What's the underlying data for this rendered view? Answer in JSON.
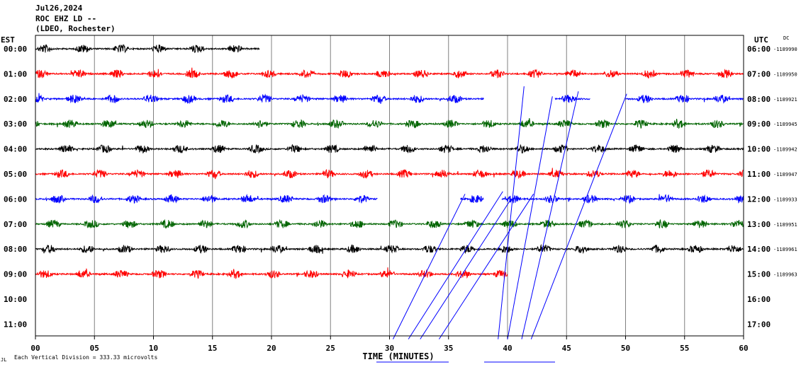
{
  "header": {
    "date": "Jul26,2024",
    "station": "ROC EHZ LD --",
    "network": "(LDEO, Rochester)"
  },
  "left_zone": "EST",
  "right_zone": "UTC",
  "right_zone_flag": "DC",
  "footer_scale": "Each Vertical Division =  333.33 microvolts",
  "footer_icon": "logo-mark-icon",
  "chart_data": {
    "type": "line",
    "title": "",
    "xlabel": "TIME (MINUTES)",
    "ylabel": "",
    "xlim": [
      0,
      60
    ],
    "x_ticks": [
      "00",
      "05",
      "10",
      "15",
      "20",
      "25",
      "30",
      "35",
      "40",
      "45",
      "50",
      "55",
      "60"
    ],
    "grid": "vertical lines every 5 minutes",
    "colors_cycle": [
      "#000000",
      "#ff0000",
      "#0000ff",
      "#006400"
    ],
    "rows": [
      {
        "est": "00:00",
        "utc": "06:00",
        "dc": "-1189990",
        "color": "#000000",
        "end_minute": 19
      },
      {
        "est": "01:00",
        "utc": "07:00",
        "dc": "-1189950",
        "color": "#ff0000",
        "end_minute": 60
      },
      {
        "est": "02:00",
        "utc": "08:00",
        "dc": "-1189921",
        "color": "#0000ff",
        "end_minute": 60,
        "gaps": [
          [
            38,
            44
          ],
          [
            47,
            50
          ]
        ]
      },
      {
        "est": "03:00",
        "utc": "09:00",
        "dc": "-1189945",
        "color": "#006400",
        "end_minute": 60
      },
      {
        "est": "04:00",
        "utc": "10:00",
        "dc": "-1189942",
        "color": "#000000",
        "end_minute": 60
      },
      {
        "est": "05:00",
        "utc": "11:00",
        "dc": "-1189947",
        "color": "#ff0000",
        "end_minute": 60
      },
      {
        "est": "06:00",
        "utc": "12:00",
        "dc": "-1189933",
        "color": "#0000ff",
        "end_minute": 60,
        "gaps": [
          [
            29,
            36
          ],
          [
            38,
            39.5
          ]
        ]
      },
      {
        "est": "07:00",
        "utc": "13:00",
        "dc": "-1189951",
        "color": "#006400",
        "end_minute": 60
      },
      {
        "est": "08:00",
        "utc": "14:00",
        "dc": "-1189961",
        "color": "#000000",
        "end_minute": 60
      },
      {
        "est": "09:00",
        "utc": "15:00",
        "dc": "-1189963",
        "color": "#ff0000",
        "end_minute": 40
      },
      {
        "est": "10:00",
        "utc": "16:00",
        "dc": "",
        "color": "#000000",
        "end_minute": 0
      },
      {
        "est": "11:00",
        "utc": "17:00",
        "dc": "",
        "color": "#000000",
        "end_minute": 0
      }
    ]
  }
}
